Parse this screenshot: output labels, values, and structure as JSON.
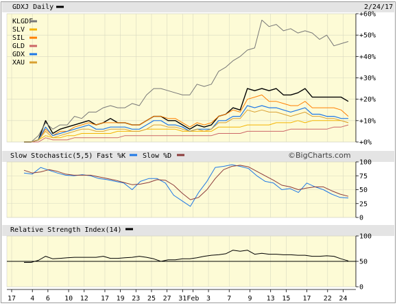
{
  "chart_data": [
    {
      "type": "line",
      "panel": "price",
      "title": "GDXJ Daily",
      "date": "2/24/17",
      "y_axis_side": "right",
      "y_ticks": [
        0,
        10,
        20,
        30,
        40,
        50,
        60
      ],
      "y_tick_labels": [
        "+0%",
        "+10%",
        "+20%",
        "+30%",
        "+40%",
        "+50%",
        "+60%"
      ],
      "ylim": [
        0,
        60
      ],
      "legend": "top-left",
      "series": [
        {
          "name": "GDXJ",
          "color": "#000000",
          "width": 1.4,
          "values": [
            0,
            0,
            1,
            10,
            4,
            6,
            7,
            8,
            9,
            10,
            8,
            9,
            11,
            9,
            9,
            8,
            8,
            10,
            12,
            12,
            10,
            10,
            8,
            6,
            8,
            7,
            8,
            12,
            13,
            16,
            15,
            25,
            24,
            25,
            24,
            25,
            22,
            22,
            23,
            25,
            21,
            21,
            21,
            21,
            21,
            19
          ]
        },
        {
          "name": "KLGDF",
          "color": "#777777",
          "width": 1,
          "values": [
            0,
            0,
            3,
            9,
            6,
            8,
            8,
            12,
            11,
            14,
            14,
            16,
            17,
            16,
            16,
            18,
            17,
            22,
            25,
            25,
            24,
            23,
            22,
            22,
            27,
            26,
            27,
            33,
            35,
            38,
            40,
            43,
            44,
            57,
            54,
            55,
            52,
            53,
            51,
            52,
            51,
            48,
            50,
            45,
            46,
            47
          ]
        },
        {
          "name": "SLV",
          "color": "#f4b400",
          "width": 1,
          "values": [
            0,
            0,
            1,
            3,
            2,
            2,
            3,
            3,
            4,
            4,
            4,
            4,
            4,
            5,
            5,
            5,
            5,
            6,
            6,
            6,
            6,
            6,
            5,
            5,
            5,
            5,
            5,
            7,
            7,
            7,
            7,
            8,
            8,
            8,
            8,
            9,
            9,
            9,
            10,
            9,
            10,
            10,
            10,
            10,
            10,
            9
          ]
        },
        {
          "name": "SIL",
          "color": "#ff7f00",
          "width": 1,
          "values": [
            0,
            0,
            1,
            6,
            3,
            5,
            5,
            7,
            8,
            9,
            8,
            9,
            9,
            9,
            9,
            8,
            8,
            10,
            12,
            12,
            11,
            11,
            9,
            7,
            9,
            8,
            9,
            12,
            13,
            15,
            14,
            20,
            21,
            22,
            19,
            19,
            18,
            17,
            17,
            19,
            16,
            16,
            16,
            16,
            15,
            12
          ]
        },
        {
          "name": "GLD",
          "color": "#cc6666",
          "width": 1,
          "values": [
            0,
            0,
            0,
            2,
            1,
            1,
            1,
            2,
            2,
            2,
            2,
            2,
            2,
            2,
            3,
            3,
            3,
            3,
            3,
            3,
            3,
            3,
            3,
            3,
            3,
            3,
            3,
            4,
            4,
            4,
            4,
            5,
            5,
            5,
            5,
            5,
            5,
            6,
            6,
            6,
            6,
            6,
            6,
            7,
            7,
            8
          ]
        },
        {
          "name": "GDX",
          "color": "#1e78e6",
          "width": 1.2,
          "values": [
            0,
            0,
            1,
            7,
            3,
            4,
            5,
            6,
            7,
            8,
            6,
            6,
            7,
            7,
            7,
            6,
            6,
            8,
            10,
            10,
            8,
            8,
            7,
            5,
            6,
            6,
            6,
            10,
            10,
            12,
            12,
            17,
            16,
            17,
            16,
            16,
            15,
            14,
            15,
            16,
            13,
            13,
            12,
            12,
            11,
            11
          ]
        },
        {
          "name": "XAU",
          "color": "#d9a032",
          "width": 1,
          "values": [
            0,
            0,
            1,
            5,
            2,
            3,
            4,
            5,
            6,
            6,
            5,
            5,
            6,
            6,
            6,
            5,
            5,
            6,
            8,
            8,
            7,
            7,
            6,
            5,
            6,
            5,
            6,
            9,
            9,
            11,
            11,
            15,
            14,
            15,
            14,
            14,
            13,
            12,
            13,
            14,
            12,
            12,
            11,
            11,
            10,
            9
          ]
        }
      ]
    },
    {
      "type": "line",
      "panel": "stochastic",
      "title": "Slow Stochastic(5,5)",
      "legend_fast": "Fast %K",
      "legend_slow": "Slow %D",
      "watermark": "©BigCharts.com",
      "y_axis_side": "right",
      "y_ticks": [
        0,
        25,
        50,
        75,
        100
      ],
      "y_tick_labels": [
        "0",
        "25",
        "50",
        "75",
        "100"
      ],
      "ylim": [
        0,
        100
      ],
      "series": [
        {
          "name": "Fast %K",
          "color": "#1e78e6",
          "width": 1,
          "values": [
            80,
            78,
            90,
            85,
            80,
            76,
            75,
            77,
            75,
            70,
            68,
            65,
            62,
            50,
            65,
            70,
            70,
            62,
            40,
            30,
            20,
            45,
            65,
            90,
            92,
            95,
            92,
            88,
            75,
            65,
            62,
            50,
            52,
            45,
            62,
            55,
            50,
            42,
            36,
            35
          ]
        },
        {
          "name": "Slow %D",
          "color": "#8b3a3a",
          "width": 1,
          "values": [
            85,
            80,
            82,
            86,
            83,
            78,
            76,
            76,
            76,
            73,
            70,
            67,
            63,
            59,
            60,
            63,
            68,
            67,
            58,
            44,
            32,
            36,
            50,
            70,
            86,
            92,
            94,
            91,
            83,
            75,
            67,
            58,
            55,
            50,
            53,
            55,
            55,
            48,
            42,
            38
          ]
        }
      ]
    },
    {
      "type": "line",
      "panel": "rsi",
      "title": "Relative Strength Index(14)",
      "y_axis_side": "right",
      "y_ticks": [
        0,
        50,
        100
      ],
      "y_tick_labels": [
        "0",
        "50",
        "100"
      ],
      "ylim": [
        0,
        100
      ],
      "reference_line": 50,
      "series": [
        {
          "name": "RSI",
          "color": "#000000",
          "width": 1,
          "values": [
            48,
            48,
            52,
            60,
            55,
            56,
            57,
            58,
            58,
            58,
            58,
            60,
            56,
            56,
            57,
            58,
            60,
            58,
            55,
            50,
            53,
            53,
            55,
            55,
            57,
            60,
            62,
            63,
            65,
            72,
            70,
            72,
            64,
            66,
            64,
            64,
            63,
            63,
            62,
            62,
            60,
            60,
            61,
            60,
            55,
            51
          ]
        }
      ]
    }
  ],
  "x_axis": {
    "labels": [
      "17",
      "4",
      "6",
      "10",
      "12",
      "17",
      "19",
      "23",
      "25",
      "27",
      "31",
      "Feb",
      "3",
      "7",
      "9",
      "13",
      "15",
      "17",
      "22",
      "24"
    ],
    "label_index": [
      0,
      4,
      7,
      11,
      14,
      18,
      21,
      24,
      27,
      30,
      33,
      35,
      38,
      42,
      46,
      50,
      53,
      57,
      61,
      64
    ]
  }
}
